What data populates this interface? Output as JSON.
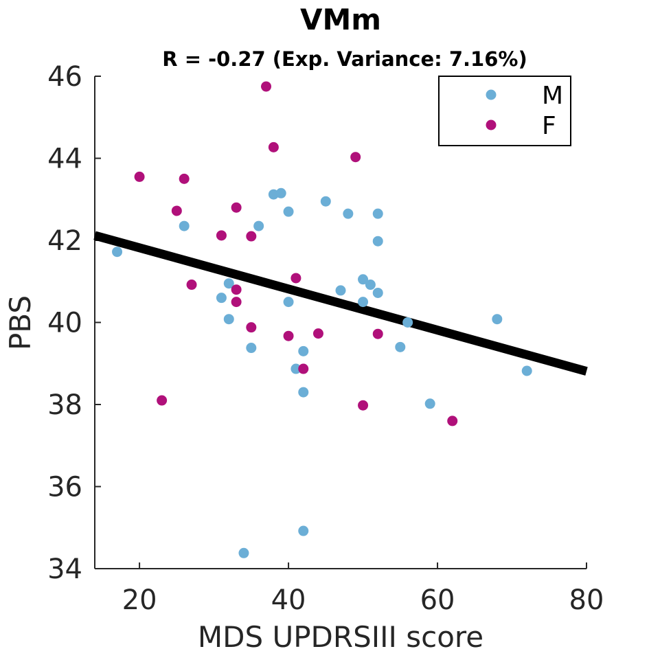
{
  "chart_data": {
    "type": "scatter",
    "title": "VMm",
    "subtitle": "R = -0.27 (Exp. Variance: 7.16%)",
    "xlabel": "MDS UPDRSIII score",
    "ylabel": "PBS",
    "xlim": [
      14,
      80
    ],
    "ylim": [
      34,
      46
    ],
    "xticks": [
      20,
      40,
      60,
      80
    ],
    "yticks": [
      34,
      36,
      38,
      40,
      42,
      44,
      46
    ],
    "grid": false,
    "legend": {
      "placement": "top-right",
      "entries": [
        "M",
        "F"
      ]
    },
    "series": [
      {
        "name": "M",
        "color": "#6BAED6",
        "points": [
          [
            17,
            41.72
          ],
          [
            26,
            42.35
          ],
          [
            31,
            40.6
          ],
          [
            32,
            40.95
          ],
          [
            32,
            40.08
          ],
          [
            35,
            39.38
          ],
          [
            36,
            42.35
          ],
          [
            38,
            43.12
          ],
          [
            39,
            43.15
          ],
          [
            40,
            42.7
          ],
          [
            40,
            40.5
          ],
          [
            41,
            38.87
          ],
          [
            42,
            39.3
          ],
          [
            42,
            38.3
          ],
          [
            42,
            34.92
          ],
          [
            34,
            34.38
          ],
          [
            45,
            42.95
          ],
          [
            47,
            40.78
          ],
          [
            48,
            42.65
          ],
          [
            50,
            41.05
          ],
          [
            50,
            40.5
          ],
          [
            51,
            40.92
          ],
          [
            52,
            42.65
          ],
          [
            52,
            41.98
          ],
          [
            52,
            40.72
          ],
          [
            55,
            39.4
          ],
          [
            56,
            40.0
          ],
          [
            59,
            38.02
          ],
          [
            68,
            40.08
          ],
          [
            72,
            38.82
          ]
        ]
      },
      {
        "name": "F",
        "color": "#B0107A",
        "points": [
          [
            20,
            43.55
          ],
          [
            23,
            38.1
          ],
          [
            25,
            42.72
          ],
          [
            26,
            43.5
          ],
          [
            27,
            40.92
          ],
          [
            31,
            42.12
          ],
          [
            33,
            42.8
          ],
          [
            33,
            40.8
          ],
          [
            33,
            40.5
          ],
          [
            35,
            42.1
          ],
          [
            35,
            39.88
          ],
          [
            37,
            45.75
          ],
          [
            38,
            44.27
          ],
          [
            40,
            39.67
          ],
          [
            41,
            41.08
          ],
          [
            42,
            38.87
          ],
          [
            44,
            39.73
          ],
          [
            49,
            44.03
          ],
          [
            50,
            37.98
          ],
          [
            52,
            39.72
          ],
          [
            62,
            37.6
          ]
        ]
      }
    ],
    "fit_line": {
      "color": "#000000",
      "x": [
        14,
        80
      ],
      "y": [
        42.12,
        38.81
      ]
    }
  }
}
